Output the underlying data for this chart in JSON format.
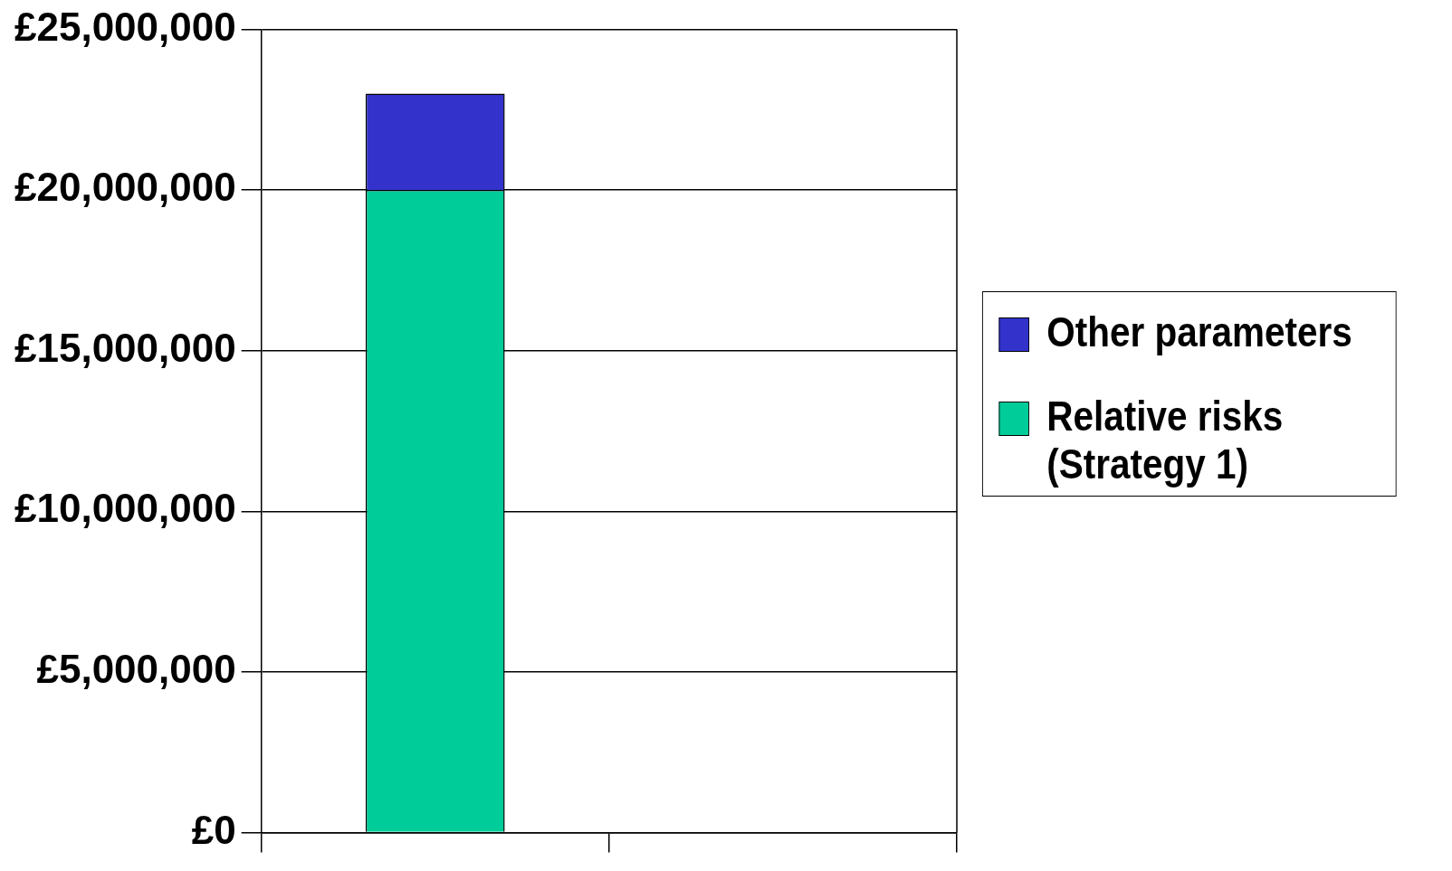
{
  "chart_data": {
    "type": "bar",
    "stacked": true,
    "categories": [
      null,
      null
    ],
    "series": [
      {
        "name": "Relative risks (Strategy 1)",
        "color": "#00cc99",
        "values": [
          20000000,
          null
        ]
      },
      {
        "name": "Other parameters",
        "color": "#3333cc",
        "values": [
          3000000,
          null
        ]
      }
    ],
    "ylim": [
      0,
      25000000
    ],
    "yticks": [
      {
        "value": 0,
        "label": "£0"
      },
      {
        "value": 5000000,
        "label": "£5,000,000"
      },
      {
        "value": 10000000,
        "label": "£10,000,000"
      },
      {
        "value": 15000000,
        "label": "£15,000,000"
      },
      {
        "value": 20000000,
        "label": "£20,000,000"
      },
      {
        "value": 25000000,
        "label": "£25,000,000"
      }
    ],
    "grid": "y",
    "legend": "right"
  }
}
